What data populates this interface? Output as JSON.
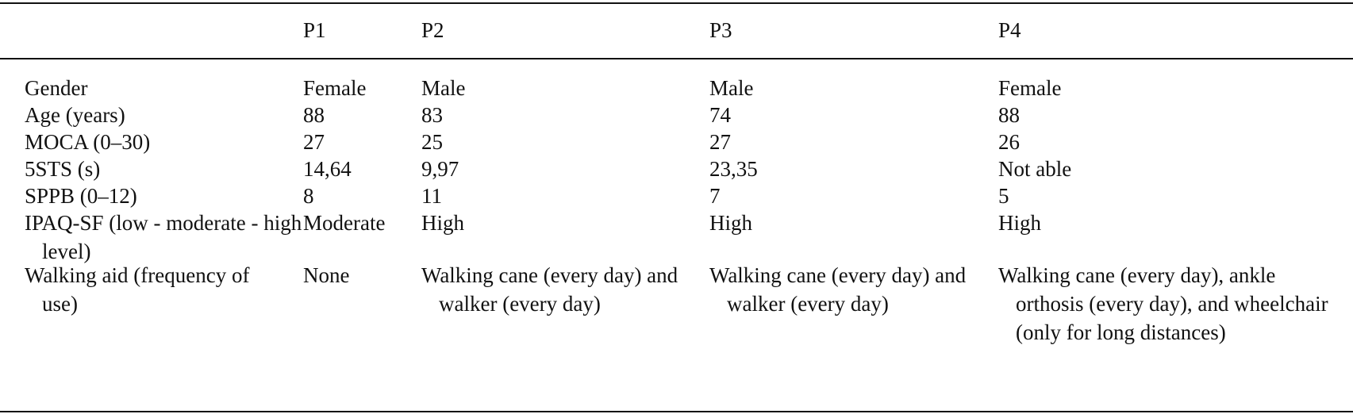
{
  "table": {
    "headers": [
      "",
      "P1",
      "P2",
      "P3",
      "P4"
    ],
    "rows": [
      {
        "label": "Gender",
        "values": [
          "Female",
          "Male",
          "Male",
          "Female"
        ]
      },
      {
        "label": "Age (years)",
        "values": [
          "88",
          "83",
          "74",
          "88"
        ]
      },
      {
        "label": "MOCA (0–30)",
        "values": [
          "27",
          "25",
          "27",
          "26"
        ]
      },
      {
        "label": "5STS (s)",
        "values": [
          "14,64",
          "9,97",
          "23,35",
          "Not able"
        ]
      },
      {
        "label": "SPPB (0–12)",
        "values": [
          "8",
          "11",
          "7",
          "5"
        ]
      },
      {
        "label": "IPAQ-SF (low - moderate - high level)",
        "values": [
          "Moderate",
          "High",
          "High",
          "High"
        ]
      },
      {
        "label": "Walking aid (frequency of use)",
        "values": [
          "None",
          "Walking cane (every day) and walker (every day)",
          "Walking cane (every day) and walker (every day)",
          "Walking cane (every day), ankle orthosis (every day), and wheelchair (only for long distances)"
        ]
      }
    ]
  }
}
